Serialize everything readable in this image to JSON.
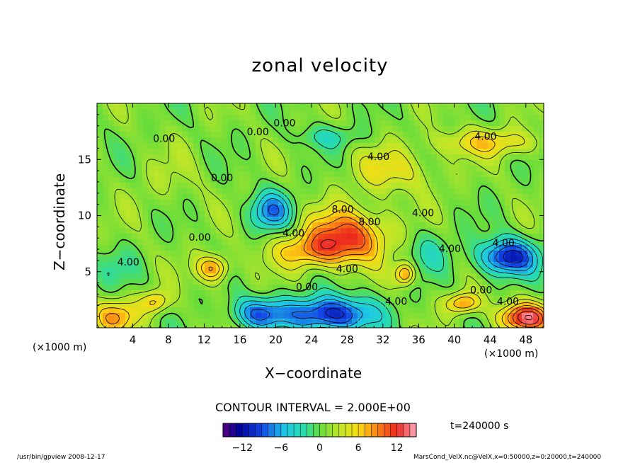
{
  "header": {
    "title": "zonal velocity"
  },
  "chart_data": {
    "type": "contour",
    "title": "zonal velocity",
    "xlabel": "X−coordinate",
    "ylabel": "Z−coordinate",
    "x_unit_label": "(×1000 m)",
    "xlim": [
      0,
      50
    ],
    "ylim": [
      0,
      20
    ],
    "x_ticks": [
      4,
      8,
      12,
      16,
      20,
      24,
      28,
      32,
      36,
      40,
      44,
      48
    ],
    "y_ticks": [
      5,
      10,
      15
    ],
    "contour_interval": 2.0,
    "contour_labels": [
      {
        "x": 7.5,
        "z": 16.8,
        "text": "0.00"
      },
      {
        "x": 18,
        "z": 17.4,
        "text": "0.00"
      },
      {
        "x": 21,
        "z": 18.2,
        "text": "0.00"
      },
      {
        "x": 14,
        "z": 13.3,
        "text": "0.00"
      },
      {
        "x": 11.5,
        "z": 8.0,
        "text": "0.00"
      },
      {
        "x": 3.5,
        "z": 5.8,
        "text": "4.00"
      },
      {
        "x": 22,
        "z": 8.4,
        "text": "4.00"
      },
      {
        "x": 27.5,
        "z": 10.5,
        "text": "8.00"
      },
      {
        "x": 30.5,
        "z": 9.4,
        "text": "8.00"
      },
      {
        "x": 28,
        "z": 5.2,
        "text": "4.00"
      },
      {
        "x": 23.5,
        "z": 3.6,
        "text": "0.00"
      },
      {
        "x": 33.5,
        "z": 2.3,
        "text": "4.00"
      },
      {
        "x": 31.5,
        "z": 15.2,
        "text": "4.00"
      },
      {
        "x": 36.5,
        "z": 10.2,
        "text": "4.00"
      },
      {
        "x": 39.5,
        "z": 7.0,
        "text": "4.00"
      },
      {
        "x": 43,
        "z": 3.3,
        "text": "0.00"
      },
      {
        "x": 45.5,
        "z": 7.5,
        "text": "4.00"
      },
      {
        "x": 46,
        "z": 2.3,
        "text": "4.00"
      },
      {
        "x": 43.5,
        "z": 17.0,
        "text": "4.00"
      }
    ],
    "colorbar": {
      "min": -15,
      "max": 15,
      "ticks": [
        -12,
        -6,
        0,
        6,
        12
      ]
    }
  },
  "annotations": {
    "contour_interval_text": "CONTOUR INTERVAL = 2.000E+00",
    "time_text": "t=240000 s",
    "footer_left": "/usr/bin/gpview  2008-12-17",
    "footer_right": "MarsCond_VelX.nc@VelX,x=0:50000,z=0:20000,t=240000"
  }
}
